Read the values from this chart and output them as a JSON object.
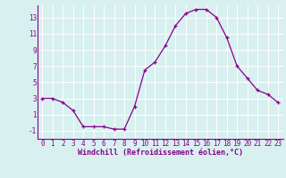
{
  "x": [
    0,
    1,
    2,
    3,
    4,
    5,
    6,
    7,
    8,
    9,
    10,
    11,
    12,
    13,
    14,
    15,
    16,
    17,
    18,
    19,
    20,
    21,
    22,
    23
  ],
  "y": [
    3,
    3,
    2.5,
    1.5,
    -0.5,
    -0.5,
    -0.5,
    -0.8,
    -0.8,
    2,
    6.5,
    7.5,
    9.5,
    12,
    13.5,
    14,
    14,
    13,
    10.5,
    7,
    5.5,
    4,
    3.5,
    2.5
  ],
  "line_color": "#880088",
  "marker": "+",
  "marker_color": "#880088",
  "bg_color": "#d8f0f0",
  "grid_color": "#ffffff",
  "xlabel": "Windchill (Refroidissement éolien,°C)",
  "xlabel_color": "#880088",
  "xlabel_fontsize": 6.0,
  "tick_color": "#880088",
  "tick_fontsize": 5.5,
  "ylim": [
    -2,
    14.5
  ],
  "yticks": [
    -1,
    1,
    3,
    5,
    7,
    9,
    11,
    13
  ],
  "xlim": [
    -0.5,
    23.5
  ],
  "xticks": [
    0,
    1,
    2,
    3,
    4,
    5,
    6,
    7,
    8,
    9,
    10,
    11,
    12,
    13,
    14,
    15,
    16,
    17,
    18,
    19,
    20,
    21,
    22,
    23
  ]
}
